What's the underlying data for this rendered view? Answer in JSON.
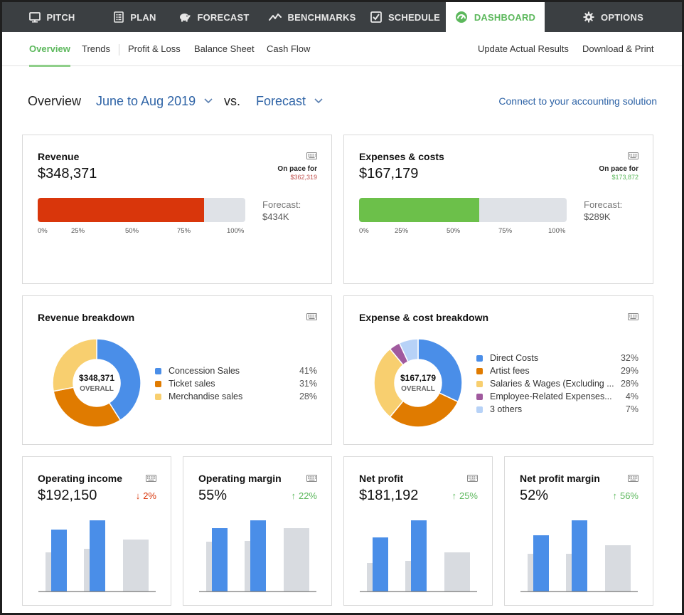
{
  "nav": {
    "tabs": [
      {
        "label": "PITCH",
        "icon": "monitor-icon"
      },
      {
        "label": "PLAN",
        "icon": "document-list-icon"
      },
      {
        "label": "FORECAST",
        "icon": "piggy-bank-icon"
      },
      {
        "label": "BENCHMARKS",
        "icon": "trend-line-icon"
      },
      {
        "label": "SCHEDULE",
        "icon": "checkbox-icon"
      },
      {
        "label": "DASHBOARD",
        "icon": "gauge-icon",
        "active": true
      },
      {
        "label": "OPTIONS",
        "icon": "gear-icon"
      }
    ]
  },
  "subnav": {
    "items": [
      "Overview",
      "Trends",
      "Profit & Loss",
      "Balance Sheet",
      "Cash Flow"
    ],
    "right_items": [
      "Update Actual Results",
      "Download & Print"
    ]
  },
  "header": {
    "title": "Overview",
    "period": "June to Aug 2019",
    "vs": "vs.",
    "compare": "Forecast",
    "connect_link": "Connect to your accounting solution"
  },
  "colors": {
    "accent_green": "#5cb85c",
    "link_blue": "#2e63a6",
    "revenue_bar": "#d9360b",
    "expense_bar": "#6cc04a",
    "chart_blue": "#4a8ee8",
    "chart_gray": "#d8dbe0",
    "down_red": "#d9360b",
    "up_green": "#5cb85c"
  },
  "revenue": {
    "title": "Revenue",
    "value": "$348,371",
    "pace_label": "On pace for",
    "pace_value": "$362,319",
    "progress": 0.8,
    "ticks": [
      "0%",
      "25%",
      "50%",
      "75%",
      "100%"
    ],
    "forecast_label": "Forecast:",
    "forecast_value": "$434K"
  },
  "expenses": {
    "title": "Expenses & costs",
    "value": "$167,179",
    "pace_label": "On pace for",
    "pace_value": "$173,872",
    "progress": 0.578,
    "ticks": [
      "0%",
      "25%",
      "50%",
      "75%",
      "100%"
    ],
    "forecast_label": "Forecast:",
    "forecast_value": "$289K"
  },
  "revenue_breakdown": {
    "title": "Revenue breakdown",
    "center_value": "$348,371",
    "center_label": "OVERALL",
    "items": [
      {
        "label": "Concession Sales",
        "pct": "41%",
        "value": 41,
        "color": "#4a8ee8"
      },
      {
        "label": "Ticket sales",
        "pct": "31%",
        "value": 31,
        "color": "#e07b00"
      },
      {
        "label": "Merchandise sales",
        "pct": "28%",
        "value": 28,
        "color": "#f8cf6f"
      }
    ]
  },
  "expense_breakdown": {
    "title": "Expense & cost breakdown",
    "center_value": "$167,179",
    "center_label": "OVERALL",
    "items": [
      {
        "label": "Direct Costs",
        "pct": "32%",
        "value": 32,
        "color": "#4a8ee8"
      },
      {
        "label": "Artist fees",
        "pct": "29%",
        "value": 29,
        "color": "#e07b00"
      },
      {
        "label": "Salaries & Wages (Excluding ...",
        "pct": "28%",
        "value": 28,
        "color": "#f8cf6f"
      },
      {
        "label": "Employee-Related Expenses...",
        "pct": "4%",
        "value": 4,
        "color": "#a05a9e"
      },
      {
        "label": "3 others",
        "pct": "7%",
        "value": 7,
        "color": "#b7d2f7"
      }
    ]
  },
  "metrics": [
    {
      "title": "Operating income",
      "value": "$192,150",
      "change": "2%",
      "direction": "down",
      "bars": {
        "group1": {
          "gray": 0.55,
          "blue": 0.87
        },
        "group2": {
          "gray": 0.6,
          "blue": 1.0
        },
        "group3": {
          "gray": 0.73
        }
      }
    },
    {
      "title": "Operating margin",
      "value": "55%",
      "change": "22%",
      "direction": "up",
      "bars": {
        "group1": {
          "gray": 0.7,
          "blue": 0.89
        },
        "group2": {
          "gray": 0.71,
          "blue": 1.0
        },
        "group3": {
          "gray": 0.89
        }
      }
    },
    {
      "title": "Net profit",
      "value": "$181,192",
      "change": "25%",
      "direction": "up",
      "bars": {
        "group1": {
          "gray": 0.4,
          "blue": 0.76
        },
        "group2": {
          "gray": 0.43,
          "blue": 1.0
        },
        "group3": {
          "gray": 0.55
        }
      }
    },
    {
      "title": "Net profit margin",
      "value": "52%",
      "change": "56%",
      "direction": "up",
      "bars": {
        "group1": {
          "gray": 0.53,
          "blue": 0.79
        },
        "group2": {
          "gray": 0.53,
          "blue": 1.0
        },
        "group3": {
          "gray": 0.65
        }
      }
    }
  ]
}
